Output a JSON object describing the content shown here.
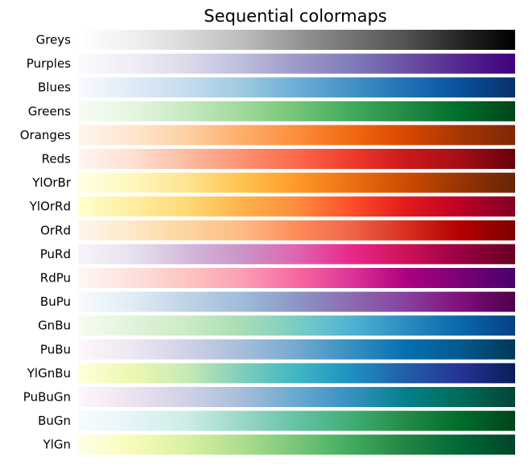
{
  "chart_data": {
    "type": "heatmap",
    "title": "Sequential colormaps",
    "grid": false,
    "legend": "none",
    "gradient_direction": "left-to-right",
    "colormaps": [
      {
        "name": "Greys",
        "colors": [
          "#ffffff",
          "#f0f0f0",
          "#d9d9d9",
          "#bdbdbd",
          "#969696",
          "#737373",
          "#525252",
          "#252525",
          "#000000"
        ]
      },
      {
        "name": "Purples",
        "colors": [
          "#fcfbfd",
          "#efedf5",
          "#dadaeb",
          "#bcbddc",
          "#9e9ac8",
          "#807dba",
          "#6a51a3",
          "#54278f",
          "#3f007d"
        ]
      },
      {
        "name": "Blues",
        "colors": [
          "#f7fbff",
          "#deebf7",
          "#c6dbef",
          "#9ecae1",
          "#6baed6",
          "#4292c6",
          "#2171b5",
          "#08519c",
          "#08306b"
        ]
      },
      {
        "name": "Greens",
        "colors": [
          "#f7fcf5",
          "#e5f5e0",
          "#c7e9c0",
          "#a1d99b",
          "#74c476",
          "#41ab5d",
          "#238b45",
          "#006d2c",
          "#00441b"
        ]
      },
      {
        "name": "Oranges",
        "colors": [
          "#fff5eb",
          "#fee6ce",
          "#fdd0a2",
          "#fdae6b",
          "#fd8d3c",
          "#f16913",
          "#d94801",
          "#a63603",
          "#7f2704"
        ]
      },
      {
        "name": "Reds",
        "colors": [
          "#fff5f0",
          "#fee0d2",
          "#fcbba1",
          "#fc9272",
          "#fb6a4a",
          "#ef3b2c",
          "#cb181d",
          "#a50f15",
          "#67000d"
        ]
      },
      {
        "name": "YlOrBr",
        "colors": [
          "#ffffe5",
          "#fff7bc",
          "#fee391",
          "#fec44f",
          "#fe9929",
          "#ec7014",
          "#cc4c02",
          "#993404",
          "#662506"
        ]
      },
      {
        "name": "YlOrRd",
        "colors": [
          "#ffffcc",
          "#ffeda0",
          "#fed976",
          "#feb24c",
          "#fd8d3c",
          "#fc4e2a",
          "#e31a1c",
          "#bd0026",
          "#800026"
        ]
      },
      {
        "name": "OrRd",
        "colors": [
          "#fff7ec",
          "#fee8c8",
          "#fdd49e",
          "#fdbb84",
          "#fc8d59",
          "#ef6548",
          "#d7301f",
          "#b30000",
          "#7f0000"
        ]
      },
      {
        "name": "PuRd",
        "colors": [
          "#f7f4f9",
          "#e7e1ef",
          "#d4b9da",
          "#c994c7",
          "#df65b0",
          "#e7298a",
          "#ce1256",
          "#980043",
          "#67001f"
        ]
      },
      {
        "name": "RdPu",
        "colors": [
          "#fff7f3",
          "#fde0dd",
          "#fcc5c0",
          "#fa9fb5",
          "#f768a1",
          "#dd3497",
          "#ae017e",
          "#7a0177",
          "#49006a"
        ]
      },
      {
        "name": "BuPu",
        "colors": [
          "#f7fcfd",
          "#e0ecf4",
          "#bfd3e6",
          "#9ebcda",
          "#8c96c6",
          "#8c6bb1",
          "#88419d",
          "#810f7c",
          "#4d004b"
        ]
      },
      {
        "name": "GnBu",
        "colors": [
          "#f7fcf0",
          "#e0f3db",
          "#ccebc5",
          "#a8ddb5",
          "#7bccc4",
          "#4eb3d3",
          "#2b8cbe",
          "#0868ac",
          "#084081"
        ]
      },
      {
        "name": "PuBu",
        "colors": [
          "#fff7fb",
          "#ece7f2",
          "#d0d1e6",
          "#a6bddb",
          "#74a9cf",
          "#3690c0",
          "#0570b0",
          "#045a8d",
          "#023858"
        ]
      },
      {
        "name": "YlGnBu",
        "colors": [
          "#ffffd9",
          "#edf8b1",
          "#c7e9b4",
          "#7fcdbb",
          "#41b6c4",
          "#1d91c0",
          "#225ea8",
          "#253494",
          "#081d58"
        ]
      },
      {
        "name": "PuBuGn",
        "colors": [
          "#fff7fb",
          "#ece2f0",
          "#d0d1e6",
          "#a6bddb",
          "#67a9cf",
          "#3690c0",
          "#02818a",
          "#016c59",
          "#014636"
        ]
      },
      {
        "name": "BuGn",
        "colors": [
          "#f7fcfd",
          "#e5f5f9",
          "#ccece6",
          "#99d8c9",
          "#66c2a4",
          "#41ae76",
          "#238b45",
          "#006d2c",
          "#00441b"
        ]
      },
      {
        "name": "YlGn",
        "colors": [
          "#ffffe5",
          "#f7fcb9",
          "#d9f0a3",
          "#addd8e",
          "#78c679",
          "#41ab5d",
          "#238443",
          "#006837",
          "#004529"
        ]
      }
    ]
  }
}
